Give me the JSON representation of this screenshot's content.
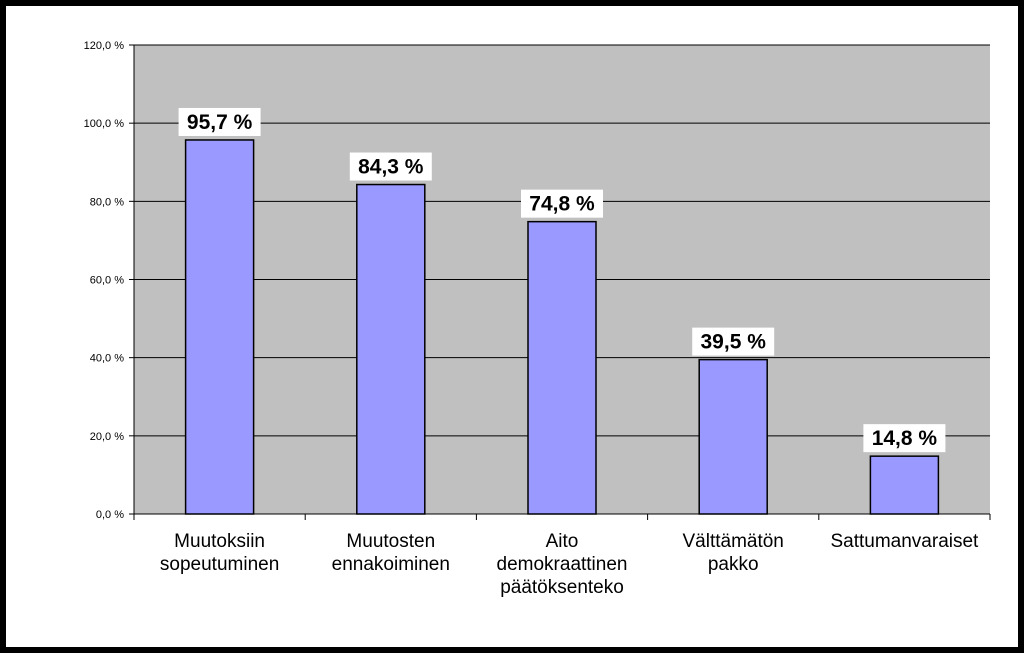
{
  "chart_data": {
    "type": "bar",
    "categories": [
      [
        "Muutoksiin",
        "sopeutuminen"
      ],
      [
        "Muutosten",
        "ennakoiminen"
      ],
      [
        "Aito",
        "demokraattinen",
        "päätöksenteko"
      ],
      [
        "Välttämätön",
        "pakko"
      ],
      [
        "Sattumanvaraiset"
      ]
    ],
    "values": [
      95.7,
      84.3,
      74.8,
      39.5,
      14.8
    ],
    "data_labels": [
      "95,7 %",
      "84,3 %",
      "74,8 %",
      "39,5 %",
      "14,8 %"
    ],
    "yticks": [
      0,
      20,
      40,
      60,
      80,
      100,
      120
    ],
    "ytick_labels": [
      "0,0 %",
      "20,0 %",
      "40,0 %",
      "60,0 %",
      "80,0 %",
      "100,0 %",
      "120,0 %"
    ],
    "ylim": [
      0,
      120
    ],
    "grid": true,
    "legend": "none",
    "title": "",
    "xlabel": "",
    "ylabel": "",
    "colors": {
      "bar": "#9999ff",
      "bar_border": "#000000",
      "plot_bg": "#c0c0c0",
      "gridline": "#000000",
      "frame": "#000000"
    }
  }
}
